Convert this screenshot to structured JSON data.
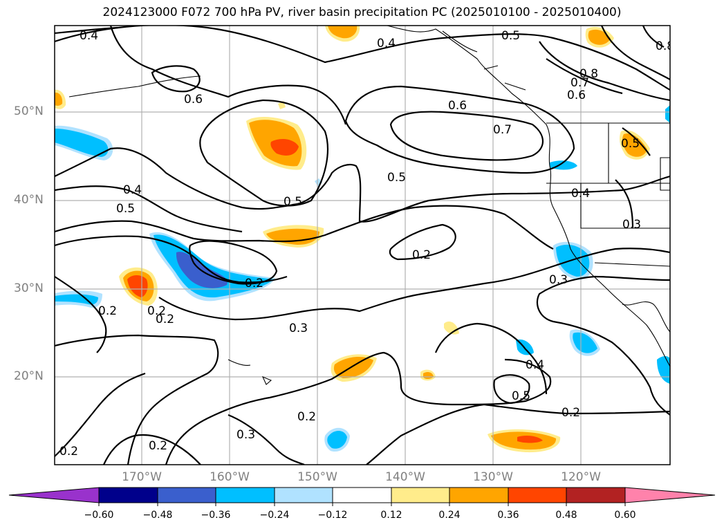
{
  "title": "2024123000 F072 700 hPa PV, river basin precipitation PC (2025010100 - 2025010400)",
  "lat_labels": [
    "50°N",
    "40°N",
    "30°N",
    "20°N"
  ],
  "lon_labels": [
    "170°W",
    "160°W",
    "150°W",
    "140°W",
    "130°W",
    "120°W"
  ],
  "colorbar": {
    "ticks": [
      "−0.60",
      "−0.48",
      "−0.36",
      "−0.24",
      "−0.12",
      "0.12",
      "0.24",
      "0.36",
      "0.48",
      "0.60"
    ],
    "colors": [
      "#9932cc",
      "#00008b",
      "#3a5fcd",
      "#00bfff",
      "#b0e2ff",
      "#ffffff",
      "#ffec8b",
      "#ffa500",
      "#ff4500",
      "#b22222",
      "#ff82ab"
    ]
  },
  "contour_labels": [
    "0.4",
    "0.4",
    "0.5",
    "0.6",
    "0.6",
    "0.7",
    "0.5",
    "0.8",
    "0.7",
    "0.6",
    "0.8",
    "0.5",
    "0.4",
    "0.5",
    "0.5",
    "0.4",
    "0.3",
    "0.2",
    "0.2",
    "0.2",
    "0.3",
    "0.2",
    "0.3",
    "0.4",
    "0.5",
    "0.2",
    "0.2",
    "0.3",
    "0.2",
    "0.2",
    "0.2"
  ]
}
